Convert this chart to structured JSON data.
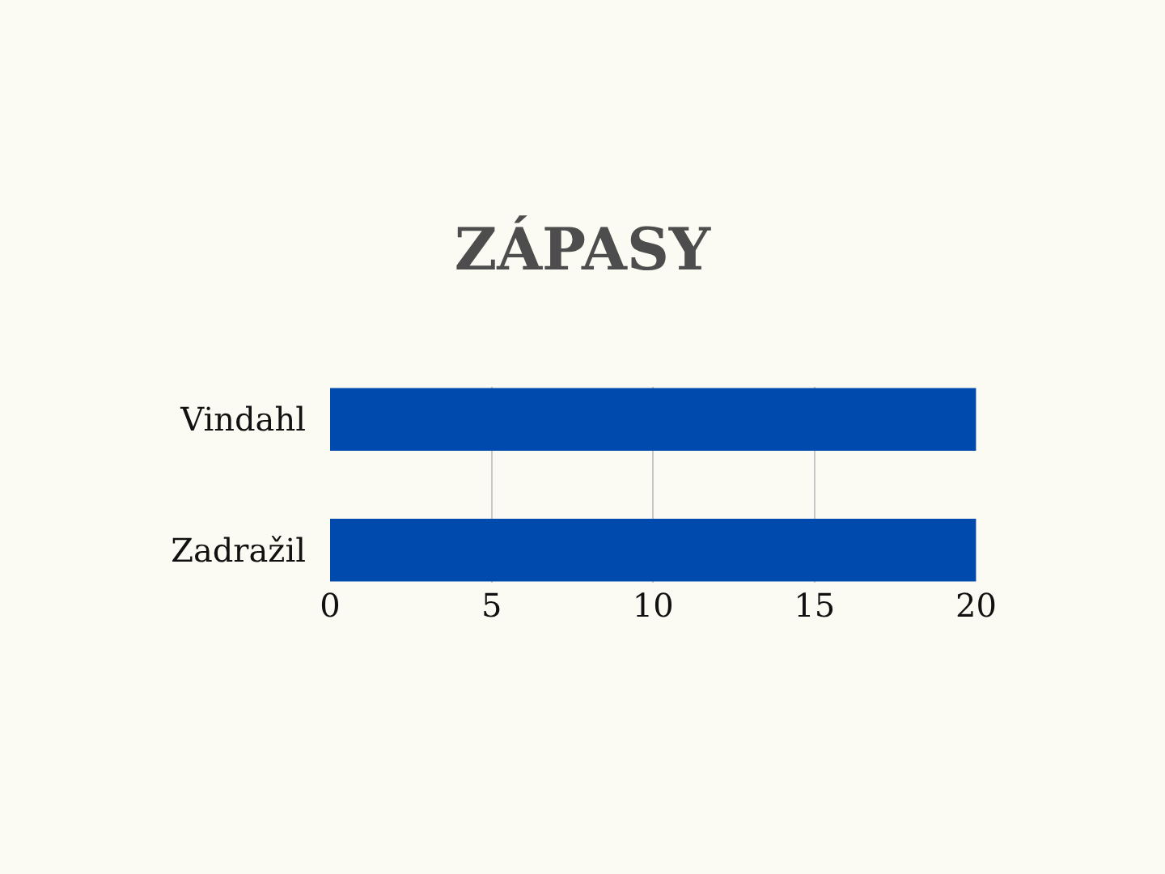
{
  "chart_data": {
    "type": "bar",
    "title": "ZÁPASY",
    "orientation": "horizontal",
    "categories": [
      "Vindahl",
      "Zadražil"
    ],
    "values": [
      20,
      20
    ],
    "color": "#004aad",
    "xlim": [
      0,
      20
    ],
    "xticks": [
      0,
      5,
      10,
      15,
      20
    ],
    "grid": "x",
    "legend": false
  }
}
